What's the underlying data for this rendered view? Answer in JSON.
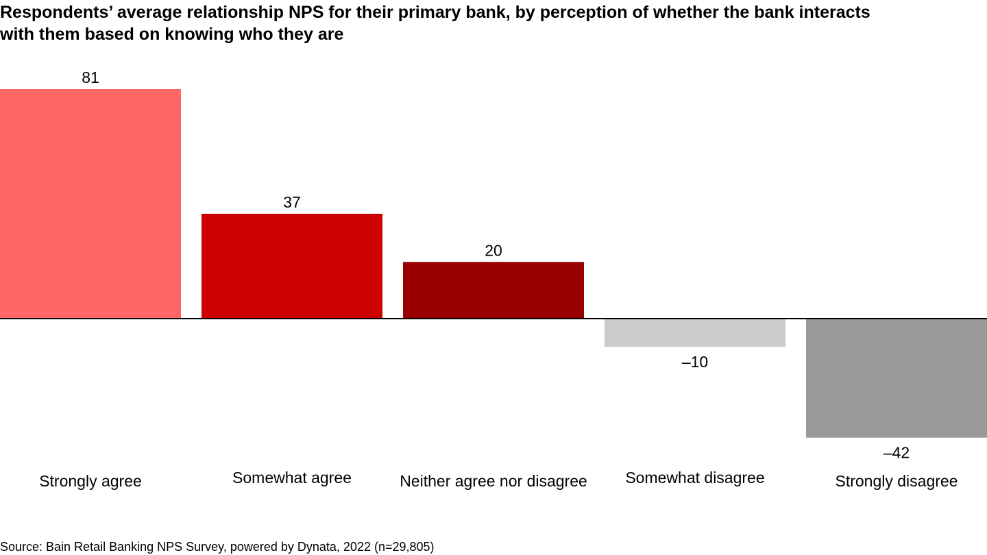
{
  "title": {
    "line1": "Respondents’ average relationship NPS for their primary bank, by perception of whether the bank interacts",
    "line2": "with them based on knowing who they are"
  },
  "source": "Source: Bain Retail Banking NPS Survey, powered by Dynata, 2022 (n=29,805)",
  "chart_data": {
    "type": "bar",
    "title": "Respondents’ average relationship NPS for their primary bank, by perception of whether the bank interacts with them based on knowing who they are",
    "categories": [
      "Strongly agree",
      "Somewhat agree",
      "Neither agree nor disagree",
      "Somewhat disagree",
      "Strongly disagree"
    ],
    "values": [
      81,
      37,
      20,
      -10,
      -42
    ],
    "value_labels": [
      "81",
      "37",
      "20",
      "–10",
      "–42"
    ],
    "colors": [
      "#ff6666",
      "#cc0000",
      "#990000",
      "#cccccc",
      "#999999"
    ],
    "xlabel": "",
    "ylabel": "",
    "ylim": [
      -42,
      81
    ],
    "grid": false,
    "legend": "none",
    "baseline_color": "#000000"
  }
}
